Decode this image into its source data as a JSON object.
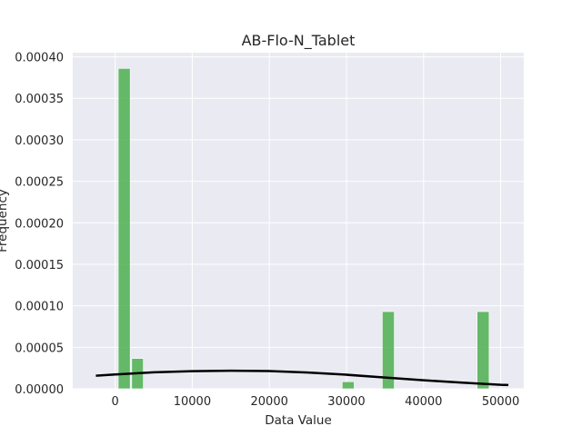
{
  "chart_data": {
    "type": "bar",
    "title": "AB-Flo-N_Tablet",
    "xlabel": "Data Value",
    "ylabel": "Frequency",
    "xlim": [
      -5500,
      53000
    ],
    "ylim": [
      0,
      0.000405
    ],
    "xticks": [
      0,
      10000,
      20000,
      30000,
      40000,
      50000
    ],
    "xtick_labels": [
      "0",
      "10000",
      "20000",
      "30000",
      "40000",
      "50000"
    ],
    "yticks": [
      0,
      5e-05,
      0.0001,
      0.00015,
      0.0002,
      0.00025,
      0.0003,
      0.00035,
      0.0004
    ],
    "ytick_labels": [
      "0.00000",
      "0.00005",
      "0.00010",
      "0.00015",
      "0.00020",
      "0.00025",
      "0.00030",
      "0.00035",
      "0.00040"
    ],
    "grid": true,
    "bar_color": "#4caf50",
    "curve_color": "#000000",
    "background": "#eaeaf2",
    "bins": [
      {
        "x0": 400,
        "x1": 1950,
        "value": 0.000386
      },
      {
        "x0": 2150,
        "x1": 3650,
        "value": 3.65e-05
      },
      {
        "x0": 29450,
        "x1": 31000,
        "value": 8.5e-06
      },
      {
        "x0": 34650,
        "x1": 36200,
        "value": 9.3e-05
      },
      {
        "x0": 46950,
        "x1": 48500,
        "value": 9.3e-05
      }
    ],
    "density_curve": {
      "x": [
        -2500,
        0,
        5000,
        10000,
        15000,
        20000,
        25000,
        30000,
        35000,
        40000,
        45000,
        50000,
        51000
      ],
      "y": [
        1.57e-05,
        1.72e-05,
        1.98e-05,
        2.12e-05,
        2.18e-05,
        2.14e-05,
        1.96e-05,
        1.69e-05,
        1.36e-05,
        1.03e-05,
        7.4e-06,
        4.8e-06,
        4.5e-06
      ]
    }
  }
}
